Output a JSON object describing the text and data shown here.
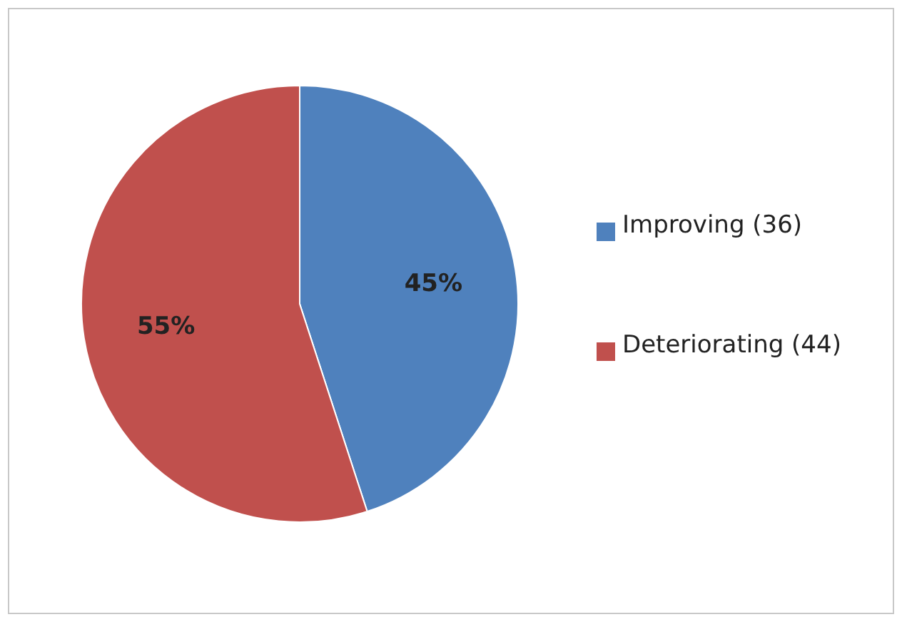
{
  "chart_data": {
    "type": "pie",
    "categories": [
      "Improving (36)",
      "Deteriorating (44)"
    ],
    "values": [
      45,
      55
    ],
    "colors": [
      "#4f81bd",
      "#c0504d"
    ],
    "value_labels": [
      "45%",
      "55%"
    ],
    "legend": "right"
  }
}
